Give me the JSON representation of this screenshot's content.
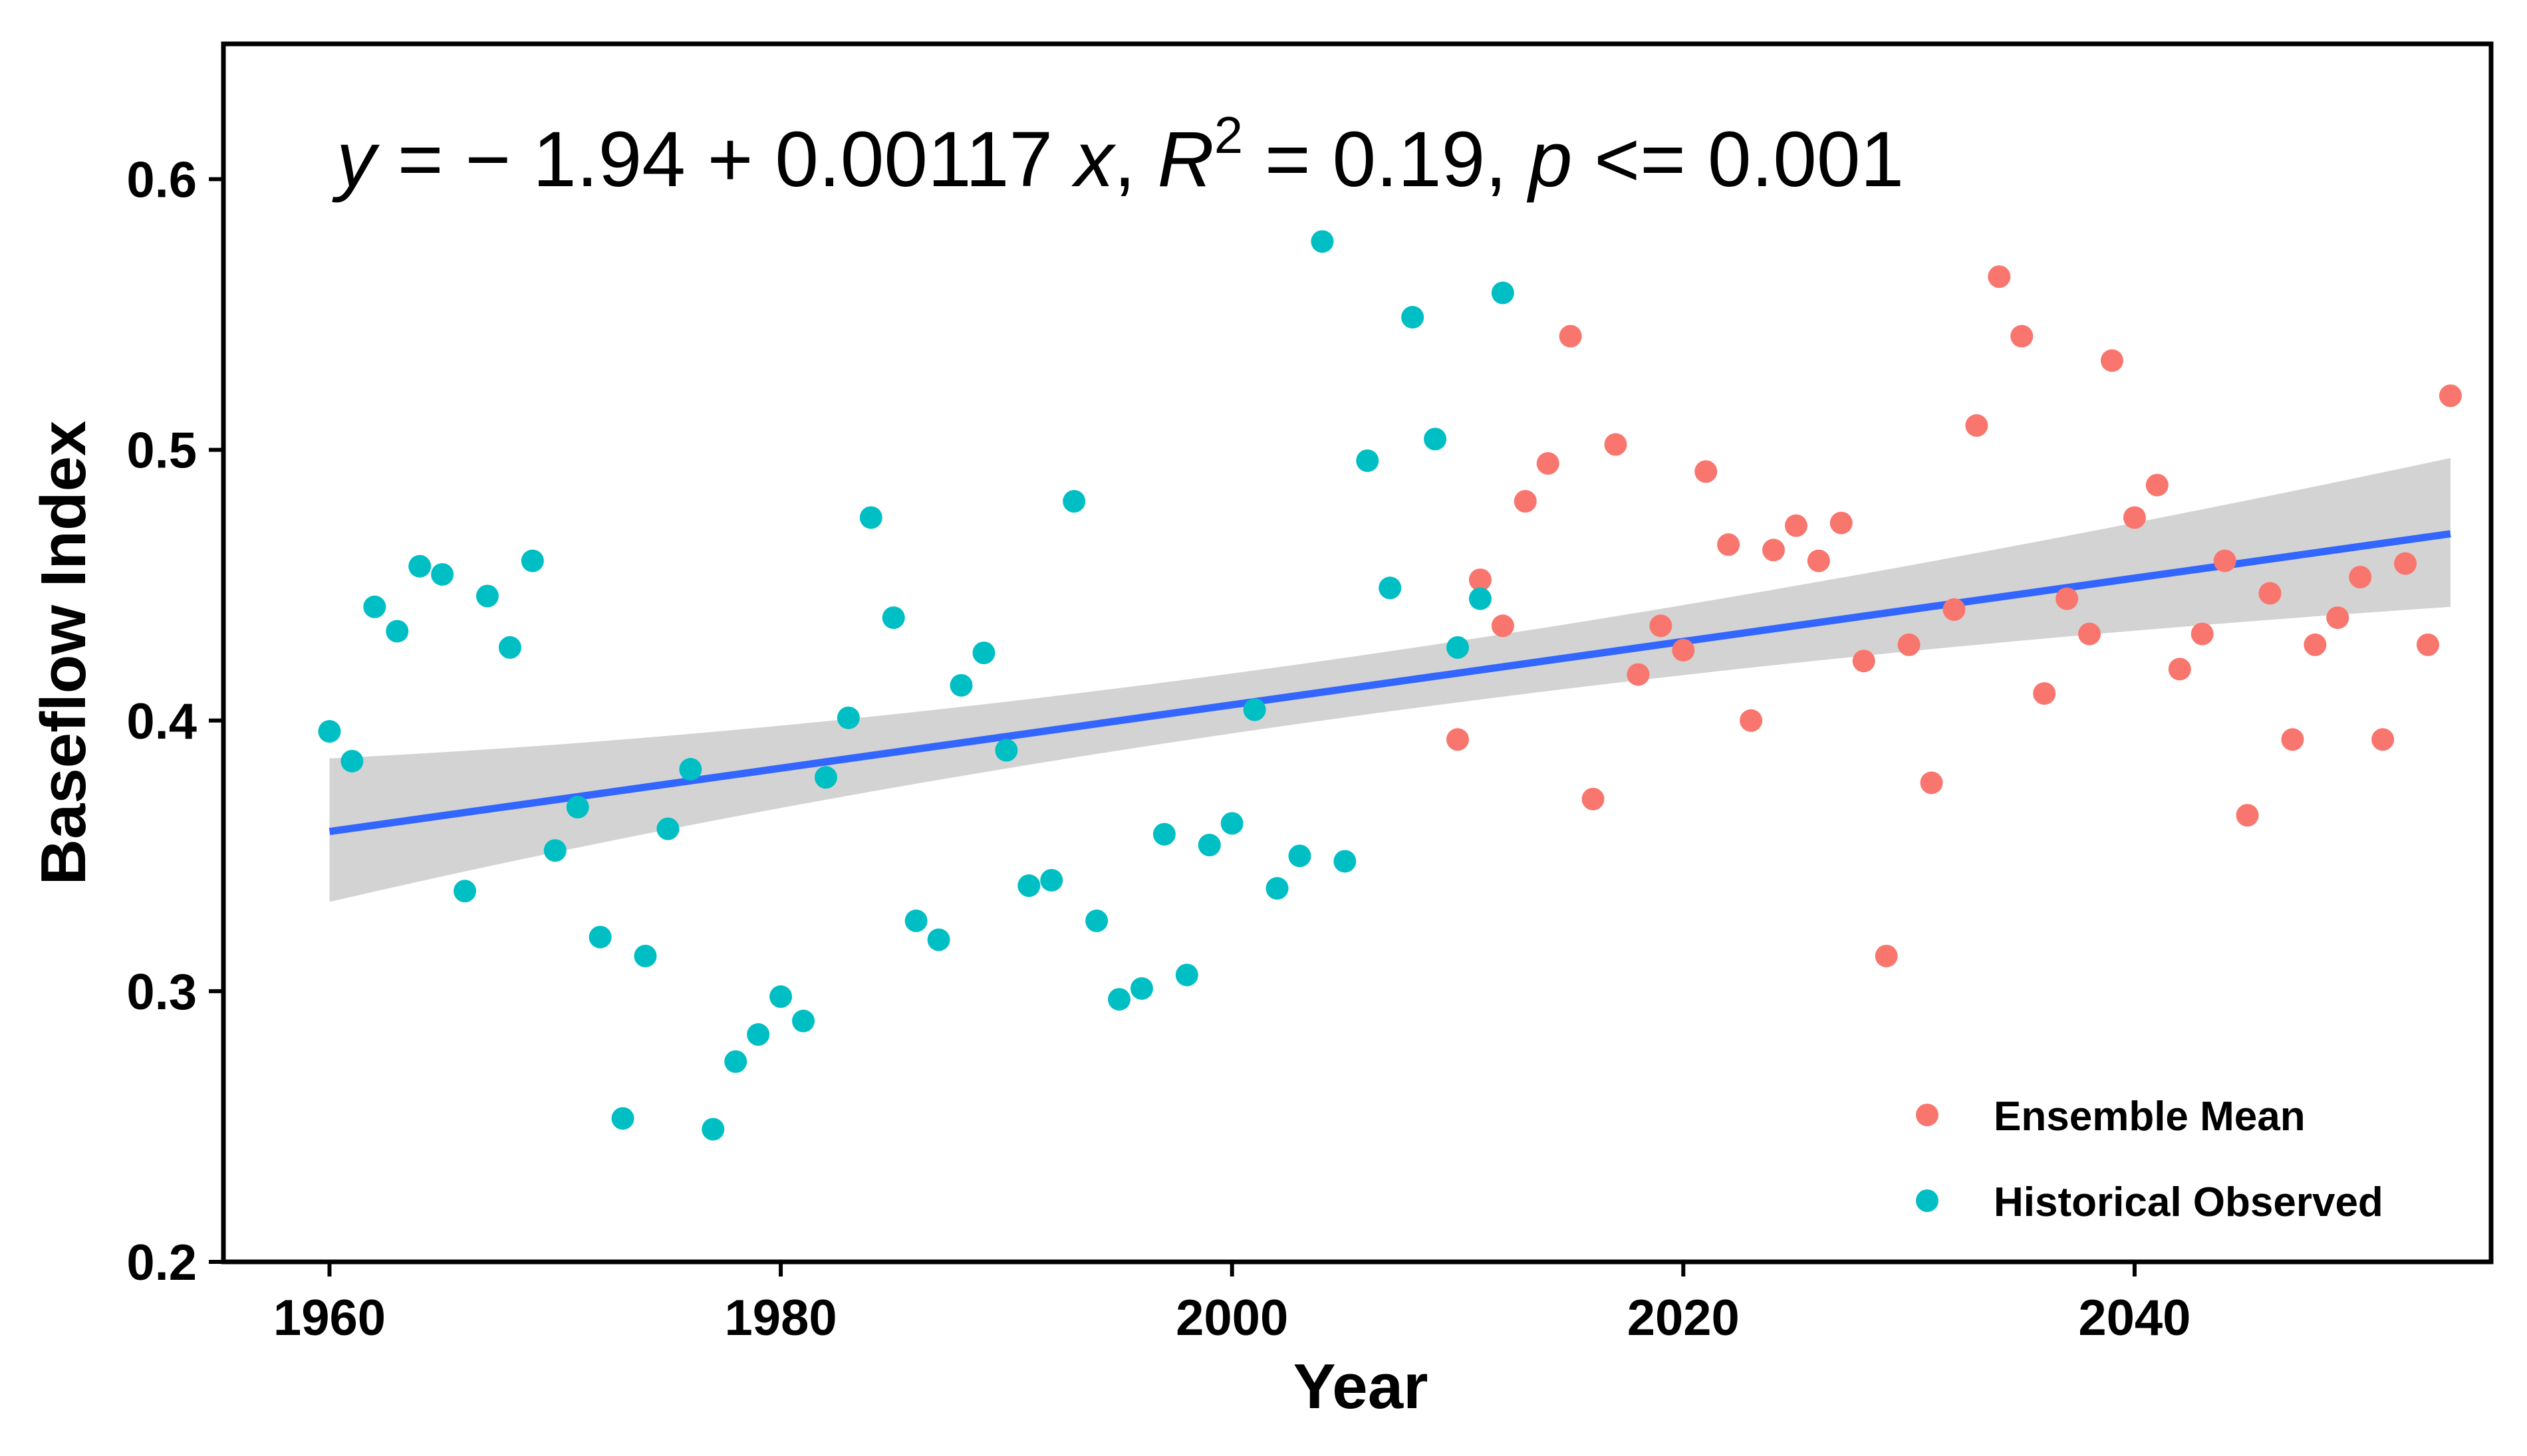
{
  "chart_data": {
    "type": "scatter",
    "xlabel": "Year",
    "ylabel": "Baseflow Index",
    "xlim": [
      1955.3,
      2055.8
    ],
    "ylim": [
      0.2,
      0.65
    ],
    "x_ticks": [
      1960,
      1980,
      2000,
      2020,
      2040
    ],
    "y_ticks": [
      0.2,
      0.3,
      0.4,
      0.5,
      0.6
    ],
    "y_tick_labels": [
      "0.2",
      "0.3",
      "0.4",
      "0.5",
      "0.6"
    ],
    "grid": false,
    "legend_position": "bottom-right",
    "annotation": {
      "y_var": "y",
      "eq_body": " = − 1.94 + 0.00117 ",
      "x_var": "x",
      "sep1": ", ",
      "r_var": "R",
      "r_exp": "2",
      "r_val": " = 0.19, ",
      "p_var": "p",
      "p_val": " <= 0.001"
    },
    "regression": {
      "intercept": -1.94,
      "slope": 0.00117,
      "x_range": [
        1960,
        2054
      ],
      "fit_start": 0.359,
      "fit_end": 0.469,
      "ci_lower_start": 0.333,
      "ci_upper_start": 0.386,
      "ci_lower_mid": 0.4,
      "ci_upper_mid": 0.422,
      "ci_mid_x": 2004,
      "ci_lower_end": 0.442,
      "ci_upper_end": 0.497,
      "line_color": "#3366FF",
      "band_color": "#D3D3D3"
    },
    "series": [
      {
        "name": "Ensemble Mean",
        "color": "#F8766D",
        "x": [
          2010,
          2011,
          2012,
          2013,
          2014,
          2015,
          2016,
          2017,
          2018,
          2019,
          2020,
          2021,
          2022,
          2023,
          2024,
          2025,
          2026,
          2027,
          2028,
          2029,
          2030,
          2031,
          2032,
          2033,
          2034,
          2035,
          2036,
          2037,
          2038,
          2039,
          2040,
          2041,
          2042,
          2043,
          2044,
          2045,
          2046,
          2047,
          2048,
          2049,
          2050,
          2051,
          2052,
          2053,
          2054
        ],
        "y": [
          0.393,
          0.452,
          0.435,
          0.481,
          0.495,
          0.542,
          0.371,
          0.502,
          0.417,
          0.435,
          0.426,
          0.492,
          0.465,
          0.4,
          0.463,
          0.472,
          0.459,
          0.473,
          0.422,
          0.313,
          0.428,
          0.377,
          0.441,
          0.509,
          0.564,
          0.542,
          0.41,
          0.445,
          0.432,
          0.533,
          0.475,
          0.487,
          0.419,
          0.432,
          0.459,
          0.365,
          0.447,
          0.393,
          0.428,
          0.438,
          0.453,
          0.393,
          0.458,
          0.428,
          0.52
        ]
      },
      {
        "name": "Historical Observed",
        "color": "#00BFC4",
        "x": [
          1960,
          1961,
          1962,
          1963,
          1964,
          1965,
          1966,
          1967,
          1968,
          1969,
          1970,
          1971,
          1972,
          1973,
          1974,
          1975,
          1976,
          1977,
          1978,
          1979,
          1980,
          1981,
          1982,
          1983,
          1984,
          1985,
          1986,
          1987,
          1988,
          1989,
          1990,
          1991,
          1992,
          1993,
          1994,
          1995,
          1996,
          1997,
          1998,
          1999,
          2000,
          2001,
          2002,
          2003,
          2004,
          2005,
          2006,
          2007,
          2008,
          2009,
          2010,
          2011,
          2012
        ],
        "y": [
          0.396,
          0.385,
          0.442,
          0.433,
          0.457,
          0.454,
          0.337,
          0.446,
          0.427,
          0.459,
          0.352,
          0.368,
          0.32,
          0.253,
          0.313,
          0.36,
          0.382,
          0.249,
          0.274,
          0.284,
          0.298,
          0.289,
          0.379,
          0.401,
          0.475,
          0.438,
          0.326,
          0.319,
          0.413,
          0.425,
          0.389,
          0.339,
          0.341,
          0.481,
          0.326,
          0.297,
          0.301,
          0.358,
          0.306,
          0.354,
          0.362,
          0.404,
          0.338,
          0.35,
          0.577,
          0.348,
          0.496,
          0.449,
          0.549,
          0.504,
          0.427,
          0.445,
          0.558
        ]
      }
    ]
  }
}
